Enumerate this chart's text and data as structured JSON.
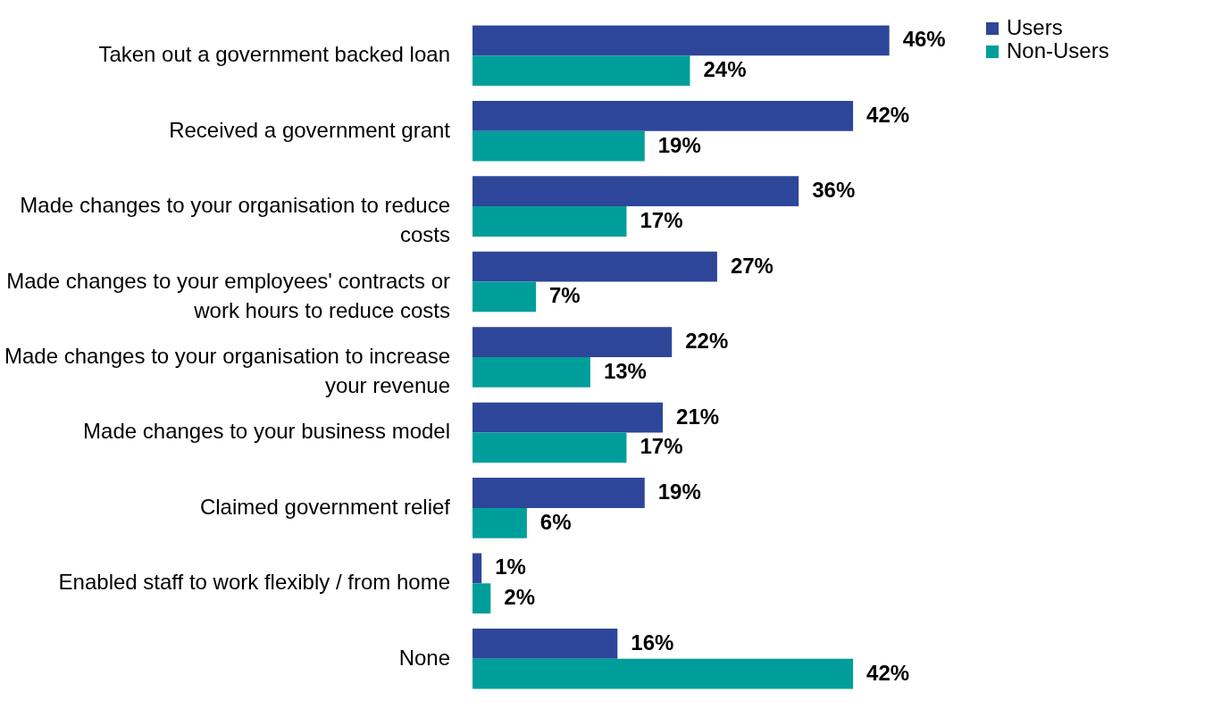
{
  "chart_data": {
    "type": "bar",
    "orientation": "horizontal",
    "categories": [
      "Taken out a government backed loan",
      "Received a government grant",
      "Made changes to your organisation to reduce costs",
      "Made changes to your employees' contracts or work hours to reduce costs",
      "Made changes to your organisation to increase your revenue",
      "Made changes to your business model",
      "Claimed government relief",
      "Enabled staff to work flexibly / from home",
      "None"
    ],
    "series": [
      {
        "name": "Users",
        "color": "#2e4699",
        "values": [
          46,
          42,
          36,
          27,
          22,
          21,
          19,
          1,
          16
        ],
        "value_labels": [
          "46%",
          "42%",
          "36%",
          "27%",
          "22%",
          "21%",
          "19%",
          "1%",
          "16%"
        ]
      },
      {
        "name": "Non-Users",
        "color": "#009e9a",
        "values": [
          24,
          19,
          17,
          7,
          13,
          17,
          6,
          2,
          42
        ],
        "value_labels": [
          "24%",
          "19%",
          "17%",
          "7%",
          "13%",
          "17%",
          "6%",
          "2%",
          "42%"
        ]
      }
    ],
    "legend": "top right"
  }
}
